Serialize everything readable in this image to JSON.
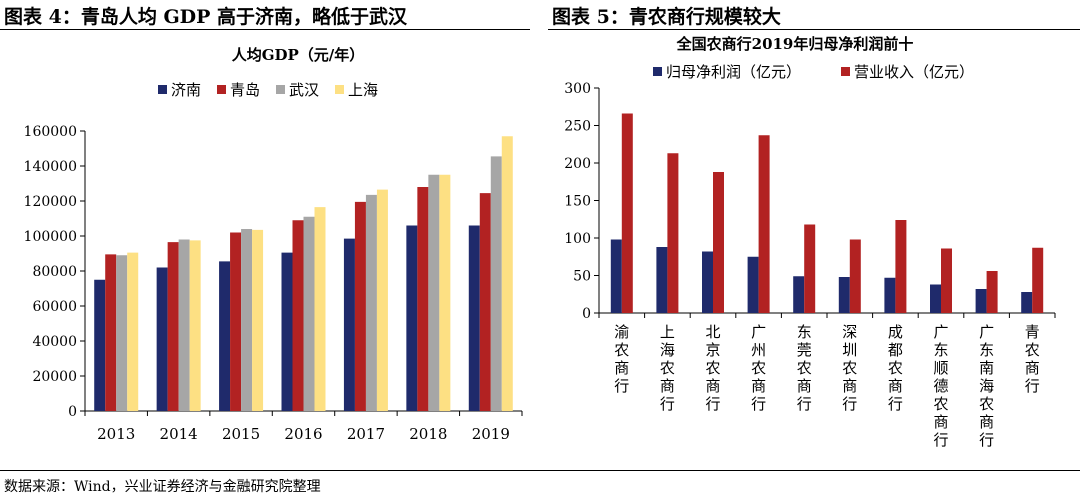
{
  "header": {
    "left_title": "图表 4：青岛人均 GDP 高于济南，略低于武汉",
    "right_title": "图表 5：青农商行规模较大"
  },
  "source": "数据来源：Wind，兴业证券经济与金融研究院整理",
  "chart_data": [
    {
      "type": "bar",
      "title": "人均GDP（元/年）",
      "categories": [
        "2013",
        "2014",
        "2015",
        "2016",
        "2017",
        "2018",
        "2019"
      ],
      "series": [
        {
          "name": "济南",
          "color": "#1f2a6b",
          "values": [
            75000,
            82000,
            85500,
            90500,
            98500,
            106000,
            106000
          ]
        },
        {
          "name": "青岛",
          "color": "#b22222",
          "values": [
            89500,
            96500,
            102000,
            109000,
            119500,
            128000,
            124500
          ]
        },
        {
          "name": "武汉",
          "color": "#a6a6a6",
          "values": [
            89000,
            98000,
            104000,
            111000,
            123500,
            135000,
            145500
          ]
        },
        {
          "name": "上海",
          "color": "#fde083",
          "values": [
            90500,
            97500,
            103500,
            116500,
            126500,
            135000,
            157000
          ]
        }
      ],
      "ylim": [
        0,
        160000
      ],
      "yticks": [
        0,
        20000,
        40000,
        60000,
        80000,
        100000,
        120000,
        140000,
        160000
      ],
      "legend": "top",
      "grid": false
    },
    {
      "type": "bar",
      "title": "全国农商行2019年归母净利润前十",
      "categories": [
        "渝农商行",
        "上海农商行",
        "北京农商行",
        "广州农商行",
        "东莞农商行",
        "深圳农商行",
        "成都农商行",
        "广东顺德农商行",
        "广东南海农商行",
        "青农商行"
      ],
      "series": [
        {
          "name": "归母净利润（亿元）",
          "color": "#1f2a6b",
          "values": [
            98,
            88,
            82,
            75,
            49,
            48,
            47,
            38,
            32,
            28
          ]
        },
        {
          "name": "营业收入（亿元）",
          "color": "#b22222",
          "values": [
            266,
            213,
            188,
            237,
            118,
            98,
            124,
            86,
            56,
            87
          ]
        }
      ],
      "ylim": [
        0,
        300
      ],
      "yticks": [
        0,
        50,
        100,
        150,
        200,
        250,
        300
      ],
      "legend": "top",
      "grid": false
    }
  ]
}
